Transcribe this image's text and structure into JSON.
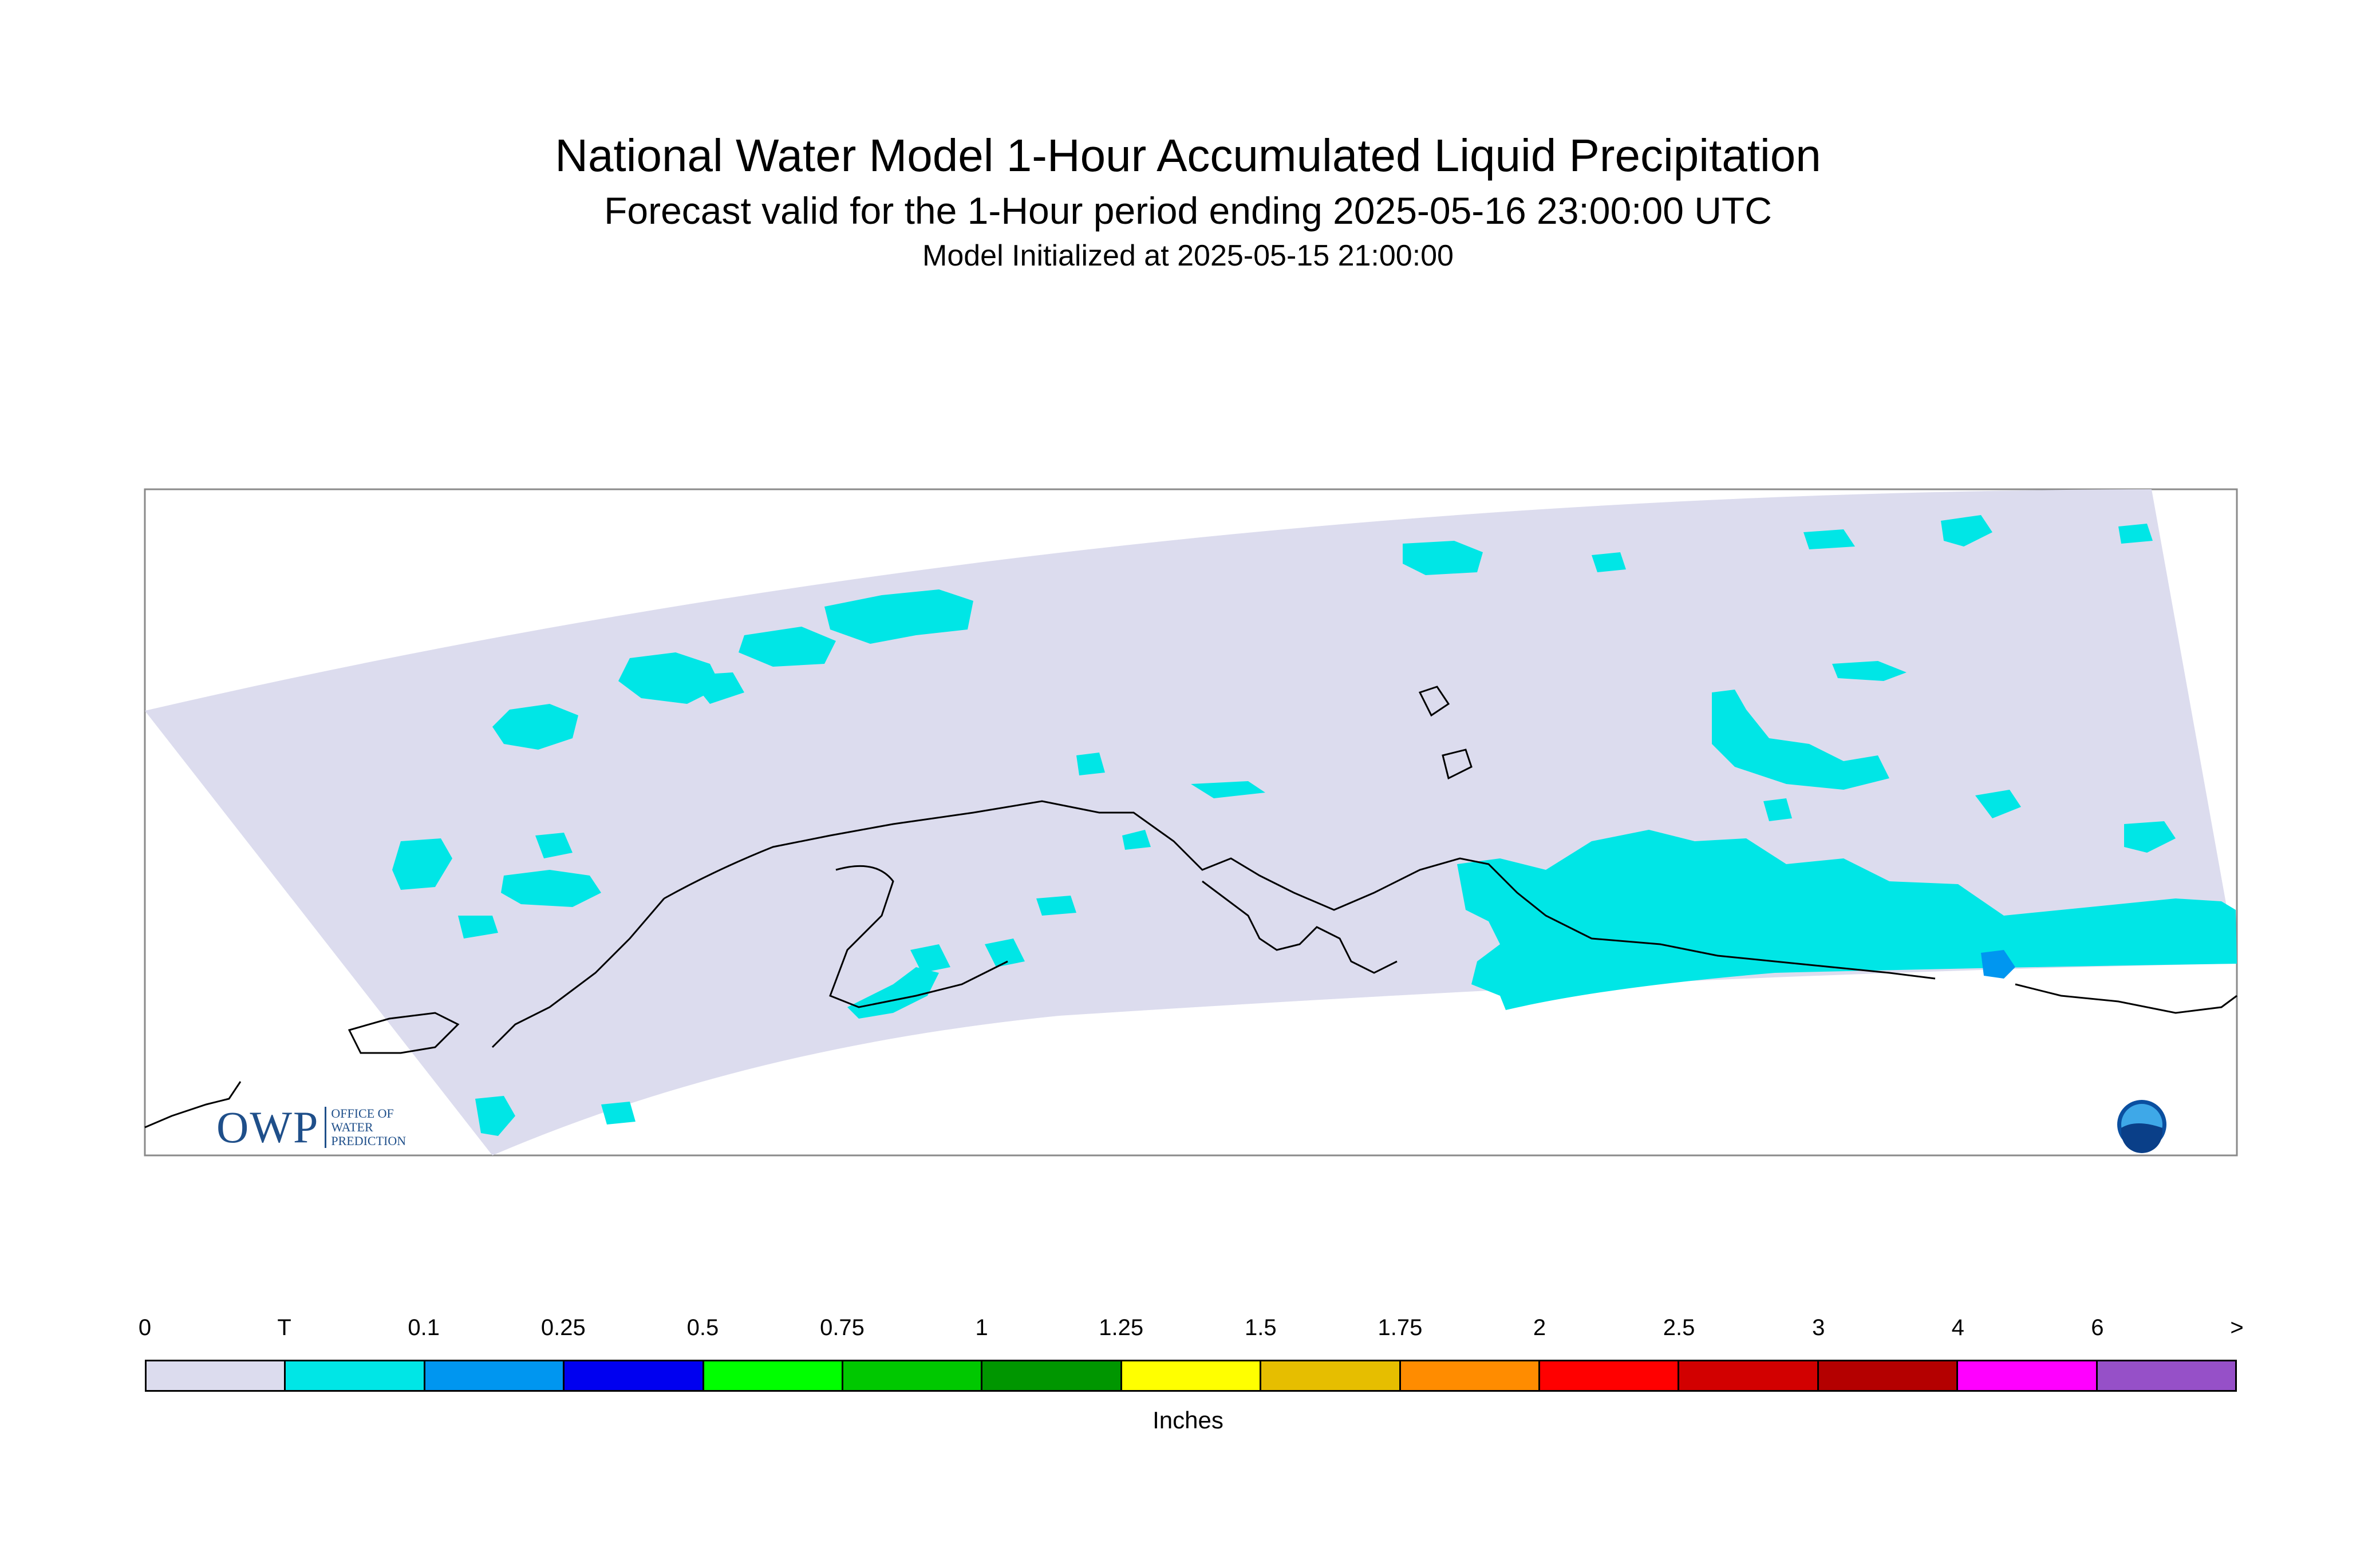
{
  "title": {
    "main": "National Water Model 1-Hour Accumulated Liquid Precipitation",
    "sub": "Forecast valid for the 1-Hour period ending 2025-05-16 23:00:00 UTC",
    "init": "Model Initialized at 2025-05-15 21:00:00"
  },
  "map": {
    "domain_fill": "#dcdcee",
    "coastline_color": "#000000",
    "precip_light_color": "#00e6e6",
    "precip_medium_color": "#0096f0"
  },
  "legend": {
    "labels": [
      "0",
      "T",
      "0.1",
      "0.25",
      "0.5",
      "0.75",
      "1",
      "1.25",
      "1.5",
      "1.75",
      "2",
      "2.5",
      "3",
      "4",
      "6",
      ">"
    ],
    "colors": [
      "#dcdcee",
      "#00e6e6",
      "#0096f0",
      "#0000f0",
      "#00ff00",
      "#00c800",
      "#009600",
      "#ffff00",
      "#e6be00",
      "#ff8c00",
      "#ff0000",
      "#d20000",
      "#b40000",
      "#ff00ff",
      "#9650c8"
    ],
    "units": "Inches"
  },
  "logos": {
    "owp_text": "OWP",
    "owp_sub": [
      "OFFICE OF",
      "WATER",
      "PREDICTION"
    ],
    "noaa_text": "NOAA"
  }
}
